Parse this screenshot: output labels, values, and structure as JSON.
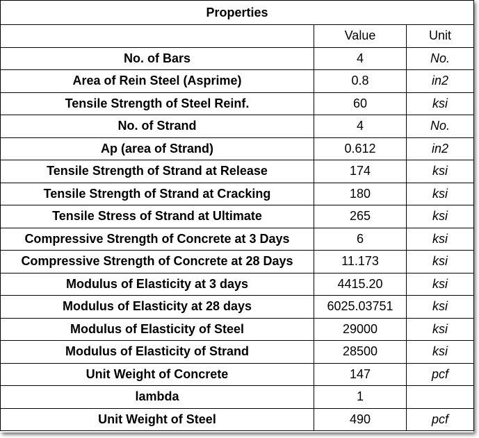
{
  "table": {
    "title": "Properties",
    "header": {
      "name": "",
      "value": "Value",
      "unit": "Unit"
    },
    "rows": [
      {
        "name": "No. of Bars",
        "value": "4",
        "unit": "No."
      },
      {
        "name": "Area of Rein Steel (Asprime)",
        "value": "0.8",
        "unit": "in2"
      },
      {
        "name": "Tensile Strength of Steel Reinf.",
        "value": "60",
        "unit": "ksi"
      },
      {
        "name": "No. of Strand",
        "value": "4",
        "unit": "No."
      },
      {
        "name": "Ap (area of Strand)",
        "value": "0.612",
        "unit": "in2"
      },
      {
        "name": "Tensile Strength of Strand at Release",
        "value": "174",
        "unit": "ksi"
      },
      {
        "name": "Tensile Strength of Strand at Cracking",
        "value": "180",
        "unit": "ksi"
      },
      {
        "name": "Tensile Stress of Strand at Ultimate",
        "value": "265",
        "unit": "ksi"
      },
      {
        "name": "Compressive Strength of Concrete at 3 Days",
        "value": "6",
        "unit": "ksi"
      },
      {
        "name": "Compressive Strength of Concrete at 28 Days",
        "value": "11.173",
        "unit": "ksi"
      },
      {
        "name": "Modulus of Elasticity at 3 days",
        "value": "4415.20",
        "unit": "ksi"
      },
      {
        "name": "Modulus of Elasticity at 28 days",
        "value": "6025.03751",
        "unit": "ksi"
      },
      {
        "name": "Modulus of Elasticity of Steel",
        "value": "29000",
        "unit": "ksi"
      },
      {
        "name": "Modulus of Elasticity of Strand",
        "value": "28500",
        "unit": "ksi"
      },
      {
        "name": "Unit Weight of Concrete",
        "value": "147",
        "unit": "pcf"
      },
      {
        "name": "lambda",
        "value": "1",
        "unit": ""
      },
      {
        "name": "Unit Weight of Steel",
        "value": "490",
        "unit": "pcf"
      }
    ]
  }
}
